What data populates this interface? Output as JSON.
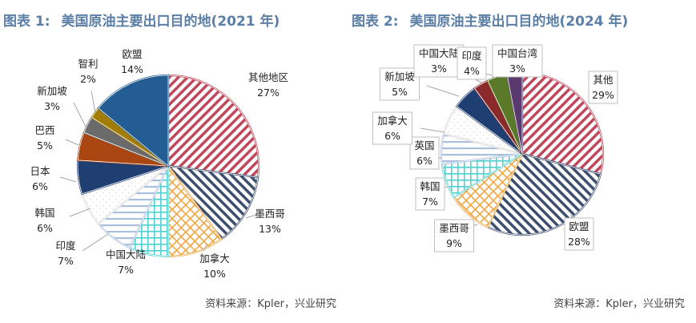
{
  "chart_data": [
    {
      "type": "pie",
      "title": "美国原油主要出口目的地(2021 年)",
      "figure_label": "图表 1:",
      "source": "资料来源：Kpler，兴业研究",
      "slices": [
        {
          "name": "其他地区",
          "value": 27,
          "label": "27%",
          "color": "#c0475a"
        },
        {
          "name": "墨西哥",
          "value": 13,
          "label": "13%",
          "color": "#3d4e6e"
        },
        {
          "name": "加拿大",
          "value": 10,
          "label": "10%",
          "color": "#f0a640"
        },
        {
          "name": "中国大陆",
          "value": 7,
          "label": "7%",
          "color": "#4fd1cf"
        },
        {
          "name": "印度",
          "value": 7,
          "label": "7%",
          "color": "#a9bfdc"
        },
        {
          "name": "韩国",
          "value": 6,
          "label": "6%",
          "color": "#d8d8d8"
        },
        {
          "name": "日本",
          "value": 6,
          "label": "6%",
          "color": "#1f3f73"
        },
        {
          "name": "巴西",
          "value": 5,
          "label": "5%",
          "color": "#a94612"
        },
        {
          "name": "新加坡",
          "value": 3,
          "label": "3%",
          "color": "#6b6b6b"
        },
        {
          "name": "智利",
          "value": 2,
          "label": "2%",
          "color": "#a27d06"
        },
        {
          "name": "欧盟",
          "value": 14,
          "label": "14%",
          "color": "#235d93"
        }
      ]
    },
    {
      "type": "pie",
      "title": "美国原油主要出口目的地(2024 年)",
      "figure_label": "图表 2:",
      "source": "资料来源：Kpler，兴业研究",
      "slices": [
        {
          "name": "其他",
          "value": 29,
          "label": "29%",
          "color": "#c0475a"
        },
        {
          "name": "欧盟",
          "value": 28,
          "label": "28%",
          "color": "#3d4e6e"
        },
        {
          "name": "墨西哥",
          "value": 9,
          "label": "9%",
          "color": "#f0a640"
        },
        {
          "name": "韩国",
          "value": 7,
          "label": "7%",
          "color": "#4fd1cf"
        },
        {
          "name": "英国",
          "value": 6,
          "label": "6%",
          "color": "#a9bfdc"
        },
        {
          "name": "加拿大",
          "value": 6,
          "label": "6%",
          "color": "#d8d8d8"
        },
        {
          "name": "新加坡",
          "value": 5,
          "label": "5%",
          "color": "#1f3f73"
        },
        {
          "name": "中国大陆",
          "value": 3,
          "label": "3%",
          "color": "#8b2a2a"
        },
        {
          "name": "印度",
          "value": 4,
          "label": "4%",
          "color": "#5a7a2a"
        },
        {
          "name": "中国台湾",
          "value": 3,
          "label": "3%",
          "color": "#5a3a6e"
        }
      ]
    }
  ]
}
